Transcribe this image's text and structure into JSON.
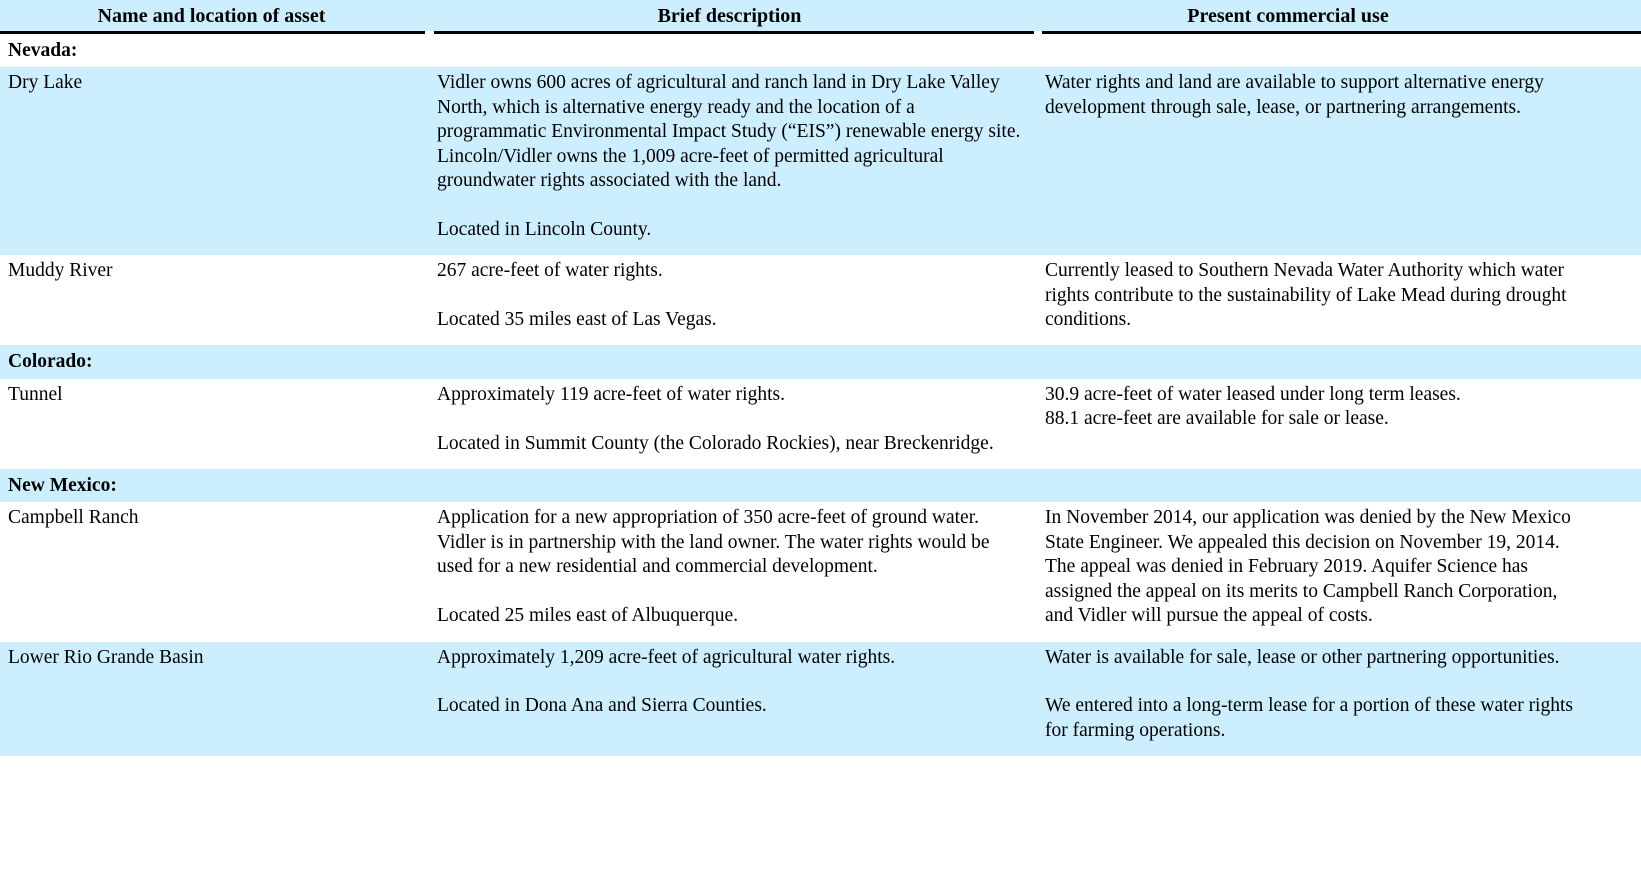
{
  "table": {
    "columns": [
      "Name and location of asset",
      "Brief description",
      "Present commercial use"
    ],
    "style": {
      "shade_color": "#cceeff",
      "header_border_color": "#000000",
      "text_color": "#000000"
    },
    "rows": [
      {
        "kind": "section",
        "shaded": false,
        "name": "Nevada:"
      },
      {
        "kind": "asset",
        "shaded": true,
        "name": "Dry Lake",
        "description": [
          "Vidler owns 600 acres of agricultural and ranch land in Dry Lake Valley North, which is alternative energy ready and the location of a programmatic Environmental Impact Study (“EIS”) renewable energy site. Lincoln/Vidler owns the 1,009 acre-feet of permitted agricultural groundwater rights associated with the land.",
          "Located in Lincoln County."
        ],
        "use": [
          "Water rights and land are available to support alternative energy development through sale, lease, or partnering arrangements."
        ]
      },
      {
        "kind": "asset",
        "shaded": false,
        "name": "Muddy River",
        "description": [
          "267 acre-feet of water rights.",
          "Located 35 miles east of Las Vegas."
        ],
        "use": [
          "Currently leased to Southern Nevada Water Authority which water rights contribute to the sustainability of Lake Mead during drought conditions."
        ]
      },
      {
        "kind": "section",
        "shaded": true,
        "name": "Colorado:"
      },
      {
        "kind": "asset",
        "shaded": false,
        "name": "Tunnel",
        "description": [
          "Approximately 119 acre-feet of water rights.",
          "Located in Summit County (the Colorado Rockies), near Breckenridge."
        ],
        "use": [
          "30.9 acre-feet of water leased under long term leases.\n88.1 acre-feet are available for sale or lease."
        ]
      },
      {
        "kind": "section",
        "shaded": true,
        "name": "New Mexico:"
      },
      {
        "kind": "asset",
        "shaded": false,
        "name": "Campbell Ranch",
        "description": [
          "Application for a new appropriation of 350 acre-feet of ground water. Vidler is in partnership with the land owner. The water rights would be used for a new residential and commercial development.",
          "Located 25 miles east of Albuquerque."
        ],
        "use": [
          "In November 2014, our application was denied by the New Mexico State Engineer. We appealed this decision on November 19, 2014. The appeal was denied in February 2019. Aquifer Science has assigned the appeal on its merits to Campbell Ranch Corporation, and Vidler will pursue the appeal of costs."
        ]
      },
      {
        "kind": "asset",
        "shaded": true,
        "name": "Lower Rio Grande Basin",
        "description": [
          "Approximately 1,209 acre-feet of agricultural water rights.",
          "Located in Dona Ana and Sierra Counties."
        ],
        "use": [
          "Water is available for sale, lease or other partnering opportunities.",
          "We entered into a long-term lease for a portion of these water rights for farming operations."
        ]
      }
    ]
  }
}
